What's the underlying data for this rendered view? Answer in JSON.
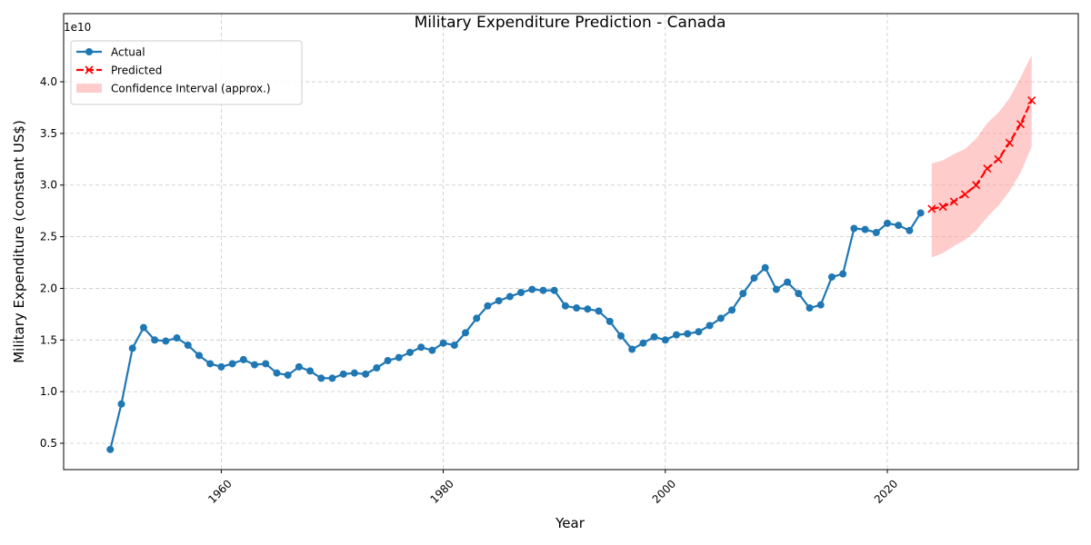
{
  "chart_data": {
    "type": "line",
    "title": "Military Expenditure Prediction - Canada",
    "xlabel": "Year",
    "ylabel": "Military Expenditure (constant US$)",
    "y_offset_label": "1e10",
    "xlim": [
      1945.8,
      2037.2
    ],
    "ylim": [
      0.245,
      4.66
    ],
    "xticks": [
      1960,
      1980,
      2000,
      2020
    ],
    "yticks": [
      {
        "value": 0.5,
        "label": "0.5"
      },
      {
        "value": 1.0,
        "label": "1.0"
      },
      {
        "value": 1.5,
        "label": "1.5"
      },
      {
        "value": 2.0,
        "label": "2.0"
      },
      {
        "value": 2.5,
        "label": "2.5"
      },
      {
        "value": 3.0,
        "label": "3.0"
      },
      {
        "value": 3.5,
        "label": "3.5"
      },
      {
        "value": 4.0,
        "label": "4.0"
      }
    ],
    "grid": true,
    "legend": "upper left",
    "series": [
      {
        "name": "Actual",
        "color": "#1f77b4",
        "marker": "circle",
        "dash": "solid",
        "x": [
          1950,
          1951,
          1952,
          1953,
          1954,
          1955,
          1956,
          1957,
          1958,
          1959,
          1960,
          1961,
          1962,
          1963,
          1964,
          1965,
          1966,
          1967,
          1968,
          1969,
          1970,
          1971,
          1972,
          1973,
          1974,
          1975,
          1976,
          1977,
          1978,
          1979,
          1980,
          1981,
          1982,
          1983,
          1984,
          1985,
          1986,
          1987,
          1988,
          1989,
          1990,
          1991,
          1992,
          1993,
          1994,
          1995,
          1996,
          1997,
          1998,
          1999,
          2000,
          2001,
          2002,
          2003,
          2004,
          2005,
          2006,
          2007,
          2008,
          2009,
          2010,
          2011,
          2012,
          2013,
          2014,
          2015,
          2016,
          2017,
          2018,
          2019,
          2020,
          2021,
          2022,
          2023
        ],
        "values": [
          0.44,
          0.88,
          1.42,
          1.62,
          1.5,
          1.49,
          1.52,
          1.45,
          1.35,
          1.27,
          1.24,
          1.27,
          1.31,
          1.26,
          1.27,
          1.18,
          1.16,
          1.24,
          1.2,
          1.13,
          1.13,
          1.17,
          1.18,
          1.17,
          1.23,
          1.3,
          1.33,
          1.38,
          1.43,
          1.4,
          1.47,
          1.45,
          1.57,
          1.71,
          1.83,
          1.88,
          1.92,
          1.96,
          1.99,
          1.98,
          1.98,
          1.83,
          1.81,
          1.8,
          1.78,
          1.68,
          1.54,
          1.41,
          1.47,
          1.53,
          1.5,
          1.55,
          1.56,
          1.58,
          1.64,
          1.71,
          1.79,
          1.95,
          2.1,
          2.2,
          1.99,
          2.06,
          1.95,
          1.81,
          1.84,
          2.11,
          2.14,
          2.58,
          2.57,
          2.54,
          2.63,
          2.61,
          2.56,
          2.73
        ]
      },
      {
        "name": "Predicted",
        "color": "#ff0000",
        "marker": "x",
        "dash": "dashed",
        "x": [
          2024,
          2025,
          2026,
          2027,
          2028,
          2029,
          2030,
          2031,
          2032,
          2033
        ],
        "values": [
          2.77,
          2.79,
          2.84,
          2.91,
          3.0,
          3.16,
          3.25,
          3.41,
          3.59,
          3.82
        ]
      }
    ],
    "bands": [
      {
        "name": "Confidence Interval (approx.)",
        "color": "#ff9999",
        "x": [
          2024,
          2025,
          2026,
          2027,
          2028,
          2029,
          2030,
          2031,
          2032,
          2033
        ],
        "lower": [
          2.3,
          2.34,
          2.41,
          2.47,
          2.56,
          2.69,
          2.8,
          2.94,
          3.12,
          3.37
        ],
        "upper": [
          3.21,
          3.24,
          3.3,
          3.35,
          3.45,
          3.6,
          3.7,
          3.84,
          4.04,
          4.26
        ]
      }
    ]
  }
}
